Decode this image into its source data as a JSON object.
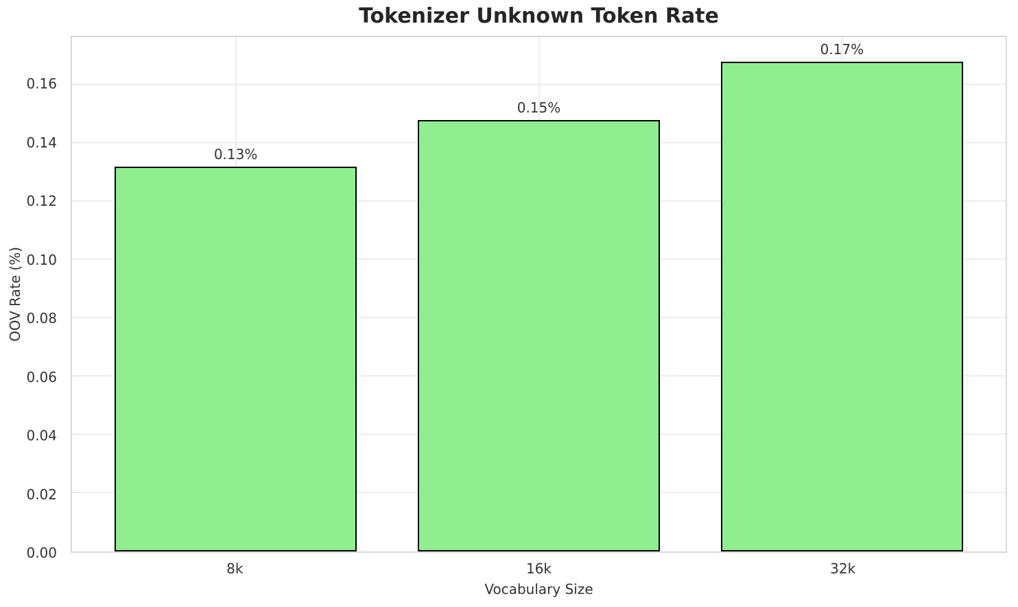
{
  "chart_data": {
    "type": "bar",
    "title": "Tokenizer Unknown Token Rate",
    "xlabel": "Vocabulary Size",
    "ylabel": "OOV Rate (%)",
    "categories": [
      "8k",
      "16k",
      "32k"
    ],
    "values": [
      0.132,
      0.148,
      0.168
    ],
    "bar_labels": [
      "0.13%",
      "0.15%",
      "0.17%"
    ],
    "y_ticks": [
      0.0,
      0.02,
      0.04,
      0.06,
      0.08,
      0.1,
      0.12,
      0.14,
      0.16
    ],
    "y_tick_labels": [
      "0.00",
      "0.02",
      "0.04",
      "0.06",
      "0.08",
      "0.10",
      "0.12",
      "0.14",
      "0.16"
    ],
    "ylim": [
      0,
      0.1764
    ],
    "grid": true,
    "legend": null,
    "colors": {
      "bar_fill": "#90EE90",
      "bar_edge": "#000000",
      "grid": "#ececec",
      "spine": "#d9d9d9",
      "title_text": "#262626",
      "tick_text": "#333333"
    }
  }
}
